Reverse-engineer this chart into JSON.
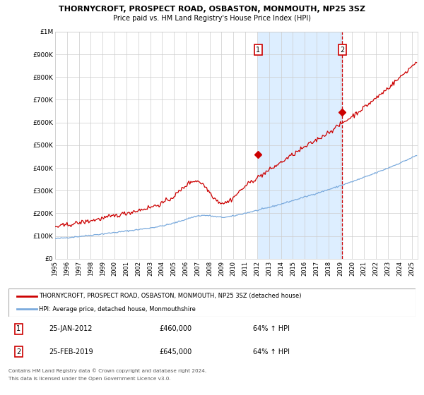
{
  "title": "THORNYCROFT, PROSPECT ROAD, OSBASTON, MONMOUTH, NP25 3SZ",
  "subtitle": "Price paid vs. HM Land Registry's House Price Index (HPI)",
  "legend_line1": "THORNYCROFT, PROSPECT ROAD, OSBASTON, MONMOUTH, NP25 3SZ (detached house)",
  "legend_line2": "HPI: Average price, detached house, Monmouthshire",
  "footer1": "Contains HM Land Registry data © Crown copyright and database right 2024.",
  "footer2": "This data is licensed under the Open Government Licence v3.0.",
  "sale1_date": "25-JAN-2012",
  "sale1_price": 460000,
  "sale1_hpi": "64% ↑ HPI",
  "sale1_year": 2012.07,
  "sale2_date": "25-FEB-2019",
  "sale2_price": 645000,
  "sale2_hpi": "64% ↑ HPI",
  "sale2_year": 2019.15,
  "red_color": "#cc0000",
  "blue_color": "#7aaadd",
  "shading_color": "#ddeeff",
  "grid_color": "#cccccc",
  "background_color": "#ffffff",
  "ylim": [
    0,
    1000000
  ],
  "xlim_start": 1995.0,
  "xlim_end": 2025.5,
  "yticks": [
    0,
    100000,
    200000,
    300000,
    400000,
    500000,
    600000,
    700000,
    800000,
    900000,
    1000000
  ],
  "ytick_labels": [
    "£0",
    "£100K",
    "£200K",
    "£300K",
    "£400K",
    "£500K",
    "£600K",
    "£700K",
    "£800K",
    "£900K",
    "£1M"
  ],
  "xticks": [
    1995,
    1996,
    1997,
    1998,
    1999,
    2000,
    2001,
    2002,
    2003,
    2004,
    2005,
    2006,
    2007,
    2008,
    2009,
    2010,
    2011,
    2012,
    2013,
    2014,
    2015,
    2016,
    2017,
    2018,
    2019,
    2020,
    2021,
    2022,
    2023,
    2024,
    2025
  ]
}
